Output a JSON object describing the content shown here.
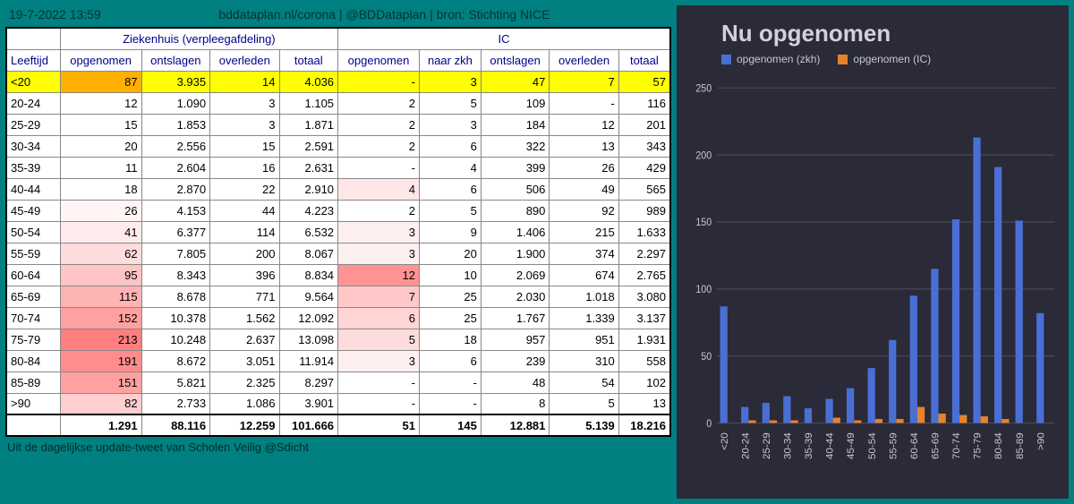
{
  "header": {
    "timestamp": "19-7-2022 13:59",
    "source": "bddataplan.nl/corona | @BDDataplan | bron: Stichting NICE"
  },
  "table": {
    "group_headers": {
      "age": "Leeftijd",
      "hospital": "Ziekenhuis (verpleegafdeling)",
      "ic": "IC"
    },
    "columns": {
      "age": "Leeftijd",
      "h_admitted": "opgenomen",
      "h_discharged": "ontslagen",
      "h_died": "overleden",
      "h_total": "totaal",
      "ic_admitted": "opgenomen",
      "ic_to_hosp": "naar zkh",
      "ic_discharged": "ontslagen",
      "ic_died": "overleden",
      "ic_total": "totaal"
    },
    "rows": [
      {
        "age": "<20",
        "h": [
          "87",
          "3.935",
          "14",
          "4.036"
        ],
        "ic": [
          "-",
          "3",
          "47",
          "7",
          "57"
        ],
        "hl_row": "yellow",
        "hl_h0": "orange"
      },
      {
        "age": "20-24",
        "h": [
          "12",
          "1.090",
          "3",
          "1.105"
        ],
        "ic": [
          "2",
          "5",
          "109",
          "-",
          "116"
        ]
      },
      {
        "age": "25-29",
        "h": [
          "15",
          "1.853",
          "3",
          "1.871"
        ],
        "ic": [
          "2",
          "3",
          "184",
          "12",
          "201"
        ]
      },
      {
        "age": "30-34",
        "h": [
          "20",
          "2.556",
          "15",
          "2.591"
        ],
        "ic": [
          "2",
          "6",
          "322",
          "13",
          "343"
        ]
      },
      {
        "age": "35-39",
        "h": [
          "11",
          "2.604",
          "16",
          "2.631"
        ],
        "ic": [
          "-",
          "4",
          "399",
          "26",
          "429"
        ]
      },
      {
        "age": "40-44",
        "h": [
          "18",
          "2.870",
          "22",
          "2.910"
        ],
        "ic": [
          "4",
          "6",
          "506",
          "49",
          "565"
        ],
        "ic0_shade": 0.12
      },
      {
        "age": "45-49",
        "h": [
          "26",
          "4.153",
          "44",
          "4.223"
        ],
        "ic": [
          "2",
          "5",
          "890",
          "92",
          "989"
        ],
        "h0_shade": 0.05
      },
      {
        "age": "50-54",
        "h": [
          "41",
          "6.377",
          "114",
          "6.532"
        ],
        "ic": [
          "3",
          "9",
          "1.406",
          "215",
          "1.633"
        ],
        "h0_shade": 0.1,
        "ic0_shade": 0.08
      },
      {
        "age": "55-59",
        "h": [
          "62",
          "7.805",
          "200",
          "8.067"
        ],
        "ic": [
          "3",
          "20",
          "1.900",
          "374",
          "2.297"
        ],
        "h0_shade": 0.18,
        "ic0_shade": 0.08
      },
      {
        "age": "60-64",
        "h": [
          "95",
          "8.343",
          "396",
          "8.834"
        ],
        "ic": [
          "12",
          "10",
          "2.069",
          "674",
          "2.765"
        ],
        "h0_shade": 0.3,
        "ic0_shade": 0.55
      },
      {
        "age": "65-69",
        "h": [
          "115",
          "8.678",
          "771",
          "9.564"
        ],
        "ic": [
          "7",
          "25",
          "2.030",
          "1.018",
          "3.080"
        ],
        "h0_shade": 0.38,
        "ic0_shade": 0.28
      },
      {
        "age": "70-74",
        "h": [
          "152",
          "10.378",
          "1.562",
          "12.092"
        ],
        "ic": [
          "6",
          "25",
          "1.767",
          "1.339",
          "3.137"
        ],
        "h0_shade": 0.48,
        "ic0_shade": 0.22
      },
      {
        "age": "75-79",
        "h": [
          "213",
          "10.248",
          "2.637",
          "13.098"
        ],
        "ic": [
          "5",
          "18",
          "957",
          "951",
          "1.931"
        ],
        "h0_shade": 0.65,
        "ic0_shade": 0.18
      },
      {
        "age": "80-84",
        "h": [
          "191",
          "8.672",
          "3.051",
          "11.914"
        ],
        "ic": [
          "3",
          "6",
          "239",
          "310",
          "558"
        ],
        "h0_shade": 0.58,
        "ic0_shade": 0.08
      },
      {
        "age": "85-89",
        "h": [
          "151",
          "5.821",
          "2.325",
          "8.297"
        ],
        "ic": [
          "-",
          "-",
          "48",
          "54",
          "102"
        ],
        "h0_shade": 0.48
      },
      {
        "age": ">90",
        "h": [
          "82",
          "2.733",
          "1.086",
          "3.901"
        ],
        "ic": [
          "-",
          "-",
          "8",
          "5",
          "13"
        ],
        "h0_shade": 0.25
      }
    ],
    "total": {
      "age": "",
      "h": [
        "1.291",
        "88.116",
        "12.259",
        "101.666"
      ],
      "ic": [
        "51",
        "145",
        "12.881",
        "5.139",
        "18.216"
      ]
    }
  },
  "footer_note": "Uit de dagelijkse update-tweet van Scholen Veilig @Sdicht",
  "chart": {
    "title": "Nu opgenomen",
    "background": "#2a2a38",
    "legend": [
      {
        "label": "opgenomen (zkh)",
        "color": "#4a6fd4"
      },
      {
        "label": "opgenomen (IC)",
        "color": "#e8822a"
      }
    ],
    "categories": [
      "<20",
      "20-24",
      "25-29",
      "30-34",
      "35-39",
      "40-44",
      "45-49",
      "50-54",
      "55-59",
      "60-64",
      "65-69",
      "70-74",
      "75-79",
      "80-84",
      "85-89",
      ">90"
    ],
    "series": [
      {
        "name": "zkh",
        "color": "#4a6fd4",
        "values": [
          87,
          12,
          15,
          20,
          11,
          18,
          26,
          41,
          62,
          95,
          115,
          152,
          213,
          191,
          151,
          82
        ]
      },
      {
        "name": "ic",
        "color": "#e8822a",
        "values": [
          0,
          2,
          2,
          2,
          0,
          4,
          2,
          3,
          3,
          12,
          7,
          6,
          5,
          3,
          0,
          0
        ]
      }
    ],
    "ylim": [
      0,
      260
    ],
    "yticks": [
      0,
      50,
      100,
      150,
      200,
      250
    ],
    "grid_color": "#4a4a58",
    "label_color": "#c8c8d4",
    "label_fontsize": 11,
    "title_fontsize": 26
  },
  "colors": {
    "page_bg": "#008080",
    "heat_base": "#ff3b3b",
    "yellow_hl": "#ffff00",
    "orange_hl": "#ffb000"
  }
}
